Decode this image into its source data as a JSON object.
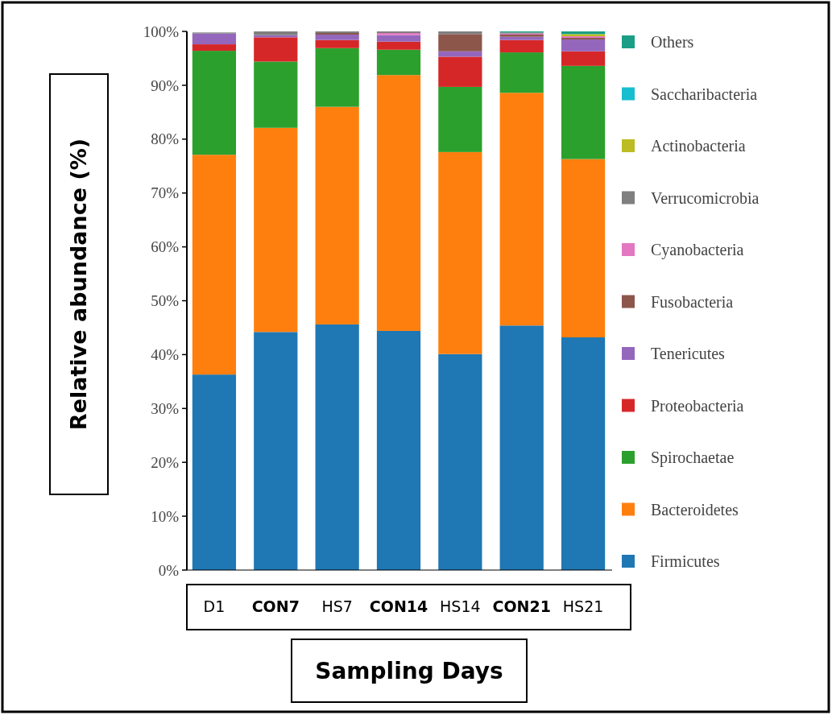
{
  "chart_data": {
    "type": "bar",
    "stacked": true,
    "xlabel": "Sampling Days",
    "ylabel": "Relative abundance (%)",
    "categories": [
      "D1",
      "CON7",
      "HS7",
      "CON14",
      "HS14",
      "CON21",
      "HS21"
    ],
    "series": [
      {
        "name": "Firmicutes",
        "color": "#1f77b4",
        "values": [
          36.3,
          44.2,
          45.6,
          44.4,
          40.1,
          45.4,
          43.2
        ]
      },
      {
        "name": "Bacteroidetes",
        "color": "#ff7f0e",
        "values": [
          40.8,
          37.9,
          40.4,
          47.5,
          37.5,
          43.2,
          33.1
        ]
      },
      {
        "name": "Spirochaetae",
        "color": "#2ca02c",
        "values": [
          19.3,
          12.3,
          10.9,
          4.7,
          12.1,
          7.5,
          17.3
        ]
      },
      {
        "name": "Proteobacteria",
        "color": "#d62728",
        "values": [
          1.2,
          4.5,
          1.5,
          1.5,
          5.6,
          2.3,
          2.7
        ]
      },
      {
        "name": "Tenericutes",
        "color": "#9467bd",
        "values": [
          2.0,
          0.4,
          1.0,
          1.2,
          1.0,
          0.6,
          2.2
        ]
      },
      {
        "name": "Fusobacteria",
        "color": "#8c564b",
        "values": [
          0,
          0,
          0.3,
          0,
          3.2,
          0.4,
          0.3
        ]
      },
      {
        "name": "Cyanobacteria",
        "color": "#e377c2",
        "values": [
          0,
          0,
          0,
          0.4,
          0,
          0.2,
          0.3
        ]
      },
      {
        "name": "Verrucomicrobia",
        "color": "#7f7f7f",
        "values": [
          0.2,
          0.7,
          0.3,
          0.3,
          0.5,
          0.2,
          0
        ]
      },
      {
        "name": "Actinobacteria",
        "color": "#bcbd22",
        "values": [
          0,
          0,
          0,
          0,
          0,
          0,
          0.4
        ]
      },
      {
        "name": "Saccharibacteria",
        "color": "#17becf",
        "values": [
          0,
          0,
          0,
          0,
          0,
          0,
          0
        ]
      },
      {
        "name": "Others",
        "color": "#1a9e85",
        "values": [
          0,
          0,
          0,
          0,
          0,
          0.2,
          0.5
        ]
      }
    ],
    "ylim": [
      0,
      100
    ],
    "yticks": [
      {
        "value": 0,
        "label": "0%"
      },
      {
        "value": 10,
        "label": "10%"
      },
      {
        "value": 20,
        "label": "20%"
      },
      {
        "value": 30,
        "label": "30%"
      },
      {
        "value": 40,
        "label": "40%"
      },
      {
        "value": 50,
        "label": "50%"
      },
      {
        "value": 60,
        "label": "60%"
      },
      {
        "value": 70,
        "label": "70%"
      },
      {
        "value": 80,
        "label": "80%"
      },
      {
        "value": 90,
        "label": "90%"
      },
      {
        "value": 100,
        "label": "100%"
      }
    ],
    "grid": false,
    "legend": "right"
  }
}
